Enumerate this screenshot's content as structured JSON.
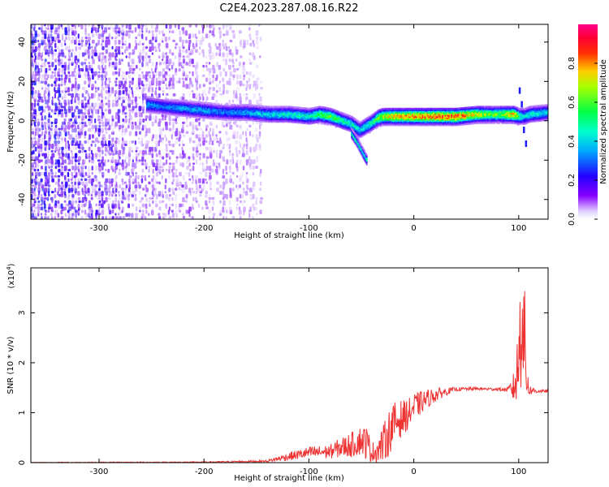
{
  "figure": {
    "title": "C2E4.2023.287.08.16.R22"
  },
  "chart_data": [
    {
      "type": "heatmap",
      "xlabel": "Height of straight line (km)",
      "ylabel": "Frequency (Hz)",
      "xlim": [
        -365,
        128
      ],
      "ylim": [
        -50,
        49
      ],
      "xticks": [
        -300,
        -200,
        -100,
        0,
        100
      ],
      "yticks": [
        -40,
        -20,
        0,
        20,
        40
      ],
      "colorbar": {
        "label": "Normalized spectral amplitude",
        "range": [
          0.0,
          1.0
        ],
        "ticks": [
          0.0,
          0.2,
          0.4,
          0.6,
          0.8
        ],
        "colormap": [
          "#e8e0ff",
          "#7b00ff",
          "#0000ff",
          "#00ccff",
          "#00ff66",
          "#ccff00",
          "#ff9900",
          "#ff0000",
          "#ff00aa"
        ]
      },
      "noise_region_x": [
        -365,
        -145
      ],
      "ridge": {
        "x": [
          -255,
          -240,
          -220,
          -200,
          -180,
          -160,
          -140,
          -120,
          -100,
          -90,
          -80,
          -70,
          -60,
          -52,
          -46,
          -40,
          -35,
          -30,
          -20,
          -10,
          0,
          20,
          40,
          60,
          80,
          95,
          100,
          105,
          110,
          128
        ],
        "y": [
          8,
          7,
          6,
          5,
          4,
          4,
          3,
          3,
          2,
          3,
          2,
          0,
          -2,
          -5,
          -3,
          -1,
          1,
          2,
          2,
          2,
          2,
          2,
          2,
          3,
          3,
          3,
          2,
          2,
          3,
          4
        ],
        "amplitude": [
          0.35,
          0.3,
          0.35,
          0.35,
          0.3,
          0.35,
          0.4,
          0.45,
          0.45,
          0.55,
          0.6,
          0.5,
          0.45,
          0.4,
          0.45,
          0.5,
          0.6,
          0.7,
          0.8,
          0.8,
          0.85,
          0.9,
          0.9,
          0.7,
          0.6,
          0.8,
          0.5,
          0.4,
          0.45,
          0.4
        ]
      },
      "branch": {
        "x": [
          -60,
          -55,
          -50,
          -45
        ],
        "y": [
          -6,
          -10,
          -15,
          -20
        ]
      },
      "spike": {
        "x": [
          100,
          102,
          104,
          106
        ],
        "y": [
          15,
          8,
          -5,
          -12
        ]
      }
    },
    {
      "type": "line",
      "xlabel": "Height of straight line (km)",
      "ylabel": "SNR (10 * v/v)",
      "multiplier": "(x10",
      "multiplier_exp": "4",
      "xlim": [
        -365,
        128
      ],
      "ylim": [
        0,
        3.9
      ],
      "xticks": [
        -300,
        -200,
        -100,
        0,
        100
      ],
      "yticks": [
        0,
        1,
        2,
        3
      ],
      "color": "#ee3333",
      "envelope": {
        "x": [
          -365,
          -200,
          -140,
          -120,
          -100,
          -80,
          -70,
          -60,
          -50,
          -45,
          -40,
          -35,
          -30,
          -25,
          -20,
          -15,
          -10,
          -5,
          0,
          10,
          20,
          30,
          40,
          60,
          80,
          90,
          95,
          98,
          100,
          102,
          104,
          106,
          108,
          110,
          120,
          128
        ],
        "y": [
          0.0,
          0.01,
          0.03,
          0.12,
          0.2,
          0.22,
          0.3,
          0.35,
          0.45,
          0.4,
          0.2,
          0.25,
          0.35,
          0.55,
          0.75,
          0.85,
          0.9,
          0.98,
          1.1,
          1.25,
          1.35,
          1.42,
          1.47,
          1.48,
          1.47,
          1.46,
          1.5,
          1.7,
          2.1,
          2.8,
          3.3,
          2.0,
          1.7,
          1.45,
          1.43,
          1.43
        ]
      },
      "noise": {
        "x": [
          -365,
          -200,
          -140,
          -120,
          -100,
          -80,
          -70,
          -60,
          -50,
          -45,
          -40,
          -35,
          -30,
          -25,
          -20,
          -15,
          -10,
          -5,
          0,
          10,
          20,
          30,
          40,
          60,
          80,
          90,
          95,
          98,
          100,
          102,
          104,
          106,
          108,
          110,
          120,
          128
        ],
        "amp": [
          0.01,
          0.01,
          0.02,
          0.08,
          0.12,
          0.14,
          0.2,
          0.25,
          0.3,
          0.35,
          0.2,
          0.25,
          0.35,
          0.45,
          0.45,
          0.4,
          0.35,
          0.3,
          0.3,
          0.2,
          0.15,
          0.08,
          0.04,
          0.03,
          0.03,
          0.05,
          0.3,
          0.6,
          1.0,
          1.4,
          1.6,
          1.2,
          0.5,
          0.1,
          0.03,
          0.03
        ]
      }
    }
  ]
}
